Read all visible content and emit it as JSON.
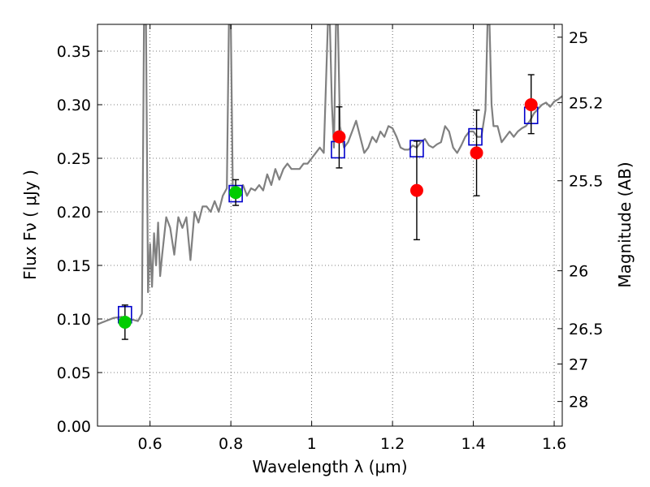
{
  "chart_data": {
    "type": "scatter",
    "xlabel": "Wavelength  λ (μm)",
    "ylabel": "Flux  Fν  ( μJy )",
    "y2label": "Magnitude (AB)",
    "xlim": [
      0.47,
      1.62
    ],
    "ylim": [
      0,
      0.375
    ],
    "grid": true,
    "x_ticks": [
      0.6,
      0.8,
      1.0,
      1.2,
      1.4,
      1.6
    ],
    "x_tick_labels": [
      "0.6",
      "0.8",
      "1",
      "1.2",
      "1.4",
      "1.6"
    ],
    "y_ticks": [
      0.0,
      0.05,
      0.1,
      0.15,
      0.2,
      0.25,
      0.3,
      0.35
    ],
    "y_tick_labels": [
      "0.00",
      "0.05",
      "0.10",
      "0.15",
      "0.20",
      "0.25",
      "0.30",
      "0.35"
    ],
    "mag_ticks": [
      {
        "label": "25",
        "flux": 0.363
      },
      {
        "label": "25.2",
        "flux": 0.302
      },
      {
        "label": "25.5",
        "flux": 0.229
      },
      {
        "label": "26",
        "flux": 0.145
      },
      {
        "label": "26.5",
        "flux": 0.091
      },
      {
        "label": "27",
        "flux": 0.058
      },
      {
        "label": "28",
        "flux": 0.023
      }
    ],
    "model_spectrum": {
      "color": "#808080",
      "x": [
        0.47,
        0.49,
        0.51,
        0.53,
        0.55,
        0.57,
        0.58,
        0.585,
        0.59,
        0.595,
        0.6,
        0.605,
        0.61,
        0.615,
        0.62,
        0.625,
        0.63,
        0.64,
        0.65,
        0.66,
        0.67,
        0.68,
        0.69,
        0.7,
        0.71,
        0.72,
        0.73,
        0.74,
        0.75,
        0.76,
        0.77,
        0.78,
        0.79,
        0.795,
        0.8,
        0.805,
        0.81,
        0.82,
        0.83,
        0.84,
        0.85,
        0.86,
        0.87,
        0.88,
        0.89,
        0.9,
        0.91,
        0.92,
        0.93,
        0.94,
        0.95,
        0.96,
        0.97,
        0.98,
        0.99,
        1.0,
        1.01,
        1.02,
        1.03,
        1.04,
        1.045,
        1.05,
        1.055,
        1.06,
        1.065,
        1.07,
        1.075,
        1.08,
        1.09,
        1.1,
        1.11,
        1.12,
        1.13,
        1.14,
        1.15,
        1.16,
        1.17,
        1.18,
        1.19,
        1.2,
        1.21,
        1.22,
        1.23,
        1.24,
        1.25,
        1.26,
        1.27,
        1.28,
        1.29,
        1.3,
        1.31,
        1.32,
        1.33,
        1.34,
        1.35,
        1.36,
        1.37,
        1.38,
        1.39,
        1.4,
        1.41,
        1.42,
        1.43,
        1.435,
        1.44,
        1.445,
        1.45,
        1.46,
        1.47,
        1.48,
        1.49,
        1.5,
        1.51,
        1.52,
        1.53,
        1.54,
        1.55,
        1.56,
        1.57,
        1.58,
        1.59,
        1.6,
        1.61,
        1.62
      ],
      "y": [
        0.095,
        0.098,
        0.101,
        0.102,
        0.1,
        0.098,
        0.105,
        0.375,
        0.375,
        0.125,
        0.17,
        0.13,
        0.18,
        0.15,
        0.19,
        0.14,
        0.16,
        0.195,
        0.185,
        0.16,
        0.195,
        0.185,
        0.195,
        0.155,
        0.2,
        0.19,
        0.205,
        0.205,
        0.2,
        0.21,
        0.2,
        0.215,
        0.222,
        0.375,
        0.375,
        0.215,
        0.22,
        0.215,
        0.225,
        0.215,
        0.222,
        0.22,
        0.225,
        0.22,
        0.235,
        0.225,
        0.24,
        0.23,
        0.24,
        0.245,
        0.24,
        0.24,
        0.24,
        0.245,
        0.245,
        0.25,
        0.255,
        0.26,
        0.255,
        0.375,
        0.375,
        0.3,
        0.26,
        0.375,
        0.375,
        0.28,
        0.27,
        0.26,
        0.265,
        0.275,
        0.285,
        0.27,
        0.255,
        0.26,
        0.27,
        0.265,
        0.275,
        0.27,
        0.28,
        0.278,
        0.27,
        0.26,
        0.258,
        0.258,
        0.262,
        0.26,
        0.265,
        0.268,
        0.262,
        0.26,
        0.263,
        0.265,
        0.28,
        0.275,
        0.26,
        0.255,
        0.262,
        0.27,
        0.275,
        0.275,
        0.27,
        0.27,
        0.295,
        0.375,
        0.375,
        0.3,
        0.28,
        0.28,
        0.265,
        0.27,
        0.275,
        0.27,
        0.275,
        0.278,
        0.28,
        0.285,
        0.292,
        0.296,
        0.3,
        0.302,
        0.298,
        0.303,
        0.305,
        0.308
      ]
    },
    "model_photometry": {
      "color": "#0000cc",
      "x": [
        0.538,
        0.812,
        1.065,
        1.26,
        1.405,
        1.543
      ],
      "y": [
        0.104,
        0.217,
        0.258,
        0.259,
        0.27,
        0.29
      ]
    },
    "observed_photometry": [
      {
        "x": 0.538,
        "y": 0.097,
        "err_low": 0.016,
        "err_high": 0.016,
        "color": "#00cc00"
      },
      {
        "x": 0.812,
        "y": 0.218,
        "err_low": 0.012,
        "err_high": 0.012,
        "color": "#00cc00"
      },
      {
        "x": 1.068,
        "y": 0.27,
        "err_low": 0.029,
        "err_high": 0.028,
        "color": "#ff0000"
      },
      {
        "x": 1.26,
        "y": 0.22,
        "err_low": 0.046,
        "err_high": 0.046,
        "color": "#ff0000"
      },
      {
        "x": 1.408,
        "y": 0.255,
        "err_low": 0.04,
        "err_high": 0.04,
        "color": "#ff0000"
      },
      {
        "x": 1.543,
        "y": 0.3,
        "err_low": 0.027,
        "err_high": 0.028,
        "color": "#ff0000"
      }
    ]
  }
}
